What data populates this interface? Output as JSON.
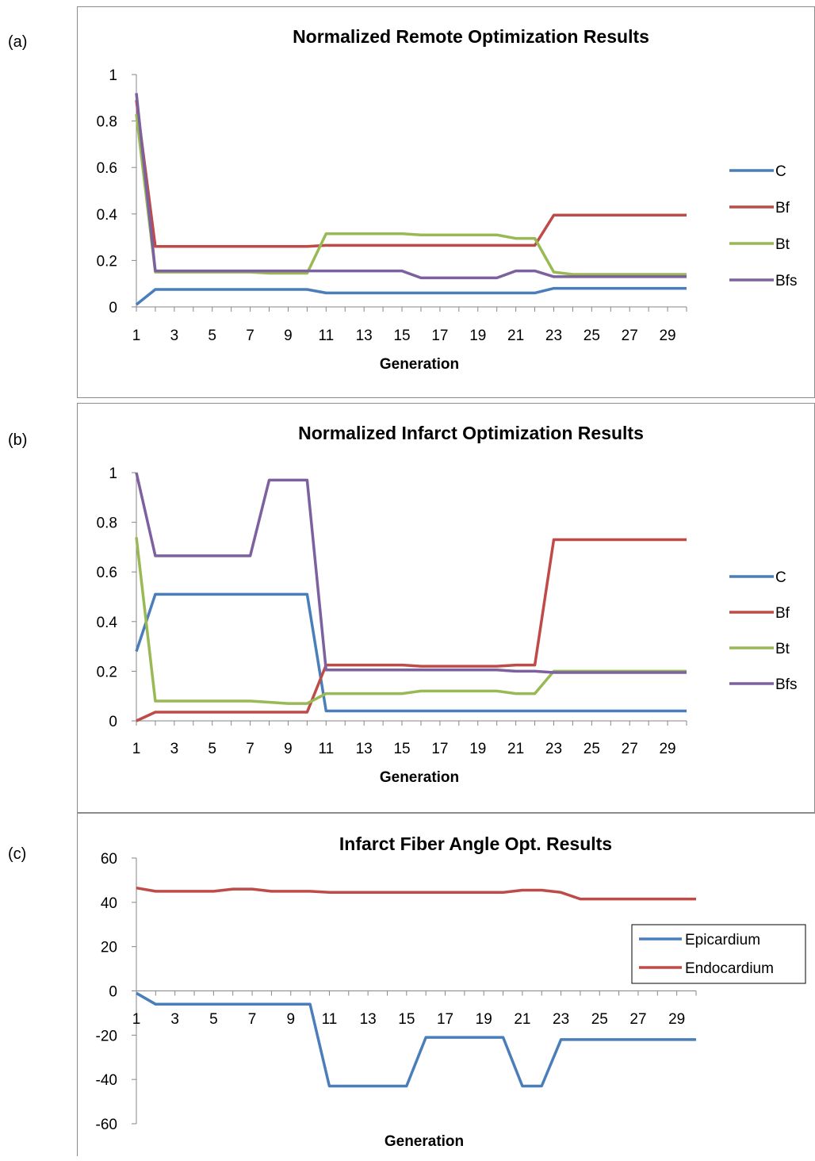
{
  "labels": {
    "a": "(a)",
    "b": "(b)",
    "c": "(c)"
  },
  "chart_data": [
    {
      "type": "line",
      "title": "Normalized Remote Optimization Results",
      "xlabel": "Generation",
      "ylabel": "",
      "ylim": [
        0,
        1
      ],
      "yticks": [
        0,
        0.2,
        0.4,
        0.6,
        0.8,
        1
      ],
      "ytick_labels": [
        "0",
        "0.2",
        "0.4",
        "0.6",
        "0.8",
        "1"
      ],
      "xticks": [
        1,
        3,
        5,
        7,
        9,
        11,
        13,
        15,
        17,
        19,
        21,
        23,
        25,
        27,
        29
      ],
      "x": [
        1,
        2,
        3,
        4,
        5,
        6,
        7,
        8,
        9,
        10,
        11,
        12,
        13,
        14,
        15,
        16,
        17,
        18,
        19,
        20,
        21,
        22,
        23,
        24,
        25,
        26,
        27,
        28,
        29,
        30
      ],
      "legend_position": "right",
      "grid": false,
      "series": [
        {
          "name": "C",
          "color": "#4a7ebb",
          "values": [
            0.01,
            0.075,
            0.075,
            0.075,
            0.075,
            0.075,
            0.075,
            0.075,
            0.075,
            0.075,
            0.06,
            0.06,
            0.06,
            0.06,
            0.06,
            0.06,
            0.06,
            0.06,
            0.06,
            0.06,
            0.06,
            0.06,
            0.08,
            0.08,
            0.08,
            0.08,
            0.08,
            0.08,
            0.08,
            0.08
          ]
        },
        {
          "name": "Bf",
          "color": "#be4b48",
          "values": [
            0.89,
            0.26,
            0.26,
            0.26,
            0.26,
            0.26,
            0.26,
            0.26,
            0.26,
            0.26,
            0.265,
            0.265,
            0.265,
            0.265,
            0.265,
            0.265,
            0.265,
            0.265,
            0.265,
            0.265,
            0.265,
            0.265,
            0.395,
            0.395,
            0.395,
            0.395,
            0.395,
            0.395,
            0.395,
            0.395
          ]
        },
        {
          "name": "Bt",
          "color": "#98b954",
          "values": [
            0.83,
            0.15,
            0.15,
            0.15,
            0.15,
            0.15,
            0.15,
            0.145,
            0.145,
            0.145,
            0.315,
            0.315,
            0.315,
            0.315,
            0.315,
            0.31,
            0.31,
            0.31,
            0.31,
            0.31,
            0.295,
            0.295,
            0.15,
            0.14,
            0.14,
            0.14,
            0.14,
            0.14,
            0.14,
            0.14
          ]
        },
        {
          "name": "Bfs",
          "color": "#7d60a0",
          "values": [
            0.92,
            0.155,
            0.155,
            0.155,
            0.155,
            0.155,
            0.155,
            0.155,
            0.155,
            0.155,
            0.155,
            0.155,
            0.155,
            0.155,
            0.155,
            0.125,
            0.125,
            0.125,
            0.125,
            0.125,
            0.155,
            0.155,
            0.13,
            0.13,
            0.13,
            0.13,
            0.13,
            0.13,
            0.13,
            0.13
          ]
        }
      ]
    },
    {
      "type": "line",
      "title": "Normalized Infarct Optimization Results",
      "xlabel": "Generation",
      "ylabel": "",
      "ylim": [
        0,
        1
      ],
      "yticks": [
        0,
        0.2,
        0.4,
        0.6,
        0.8,
        1
      ],
      "ytick_labels": [
        "0",
        "0.2",
        "0.4",
        "0.6",
        "0.8",
        "1"
      ],
      "xticks": [
        1,
        3,
        5,
        7,
        9,
        11,
        13,
        15,
        17,
        19,
        21,
        23,
        25,
        27,
        29
      ],
      "x": [
        1,
        2,
        3,
        4,
        5,
        6,
        7,
        8,
        9,
        10,
        11,
        12,
        13,
        14,
        15,
        16,
        17,
        18,
        19,
        20,
        21,
        22,
        23,
        24,
        25,
        26,
        27,
        28,
        29,
        30
      ],
      "legend_position": "right",
      "grid": false,
      "series": [
        {
          "name": "C",
          "color": "#4a7ebb",
          "values": [
            0.28,
            0.51,
            0.51,
            0.51,
            0.51,
            0.51,
            0.51,
            0.51,
            0.51,
            0.51,
            0.04,
            0.04,
            0.04,
            0.04,
            0.04,
            0.04,
            0.04,
            0.04,
            0.04,
            0.04,
            0.04,
            0.04,
            0.04,
            0.04,
            0.04,
            0.04,
            0.04,
            0.04,
            0.04,
            0.04
          ]
        },
        {
          "name": "Bf",
          "color": "#be4b48",
          "values": [
            0.0,
            0.035,
            0.035,
            0.035,
            0.035,
            0.035,
            0.035,
            0.035,
            0.035,
            0.035,
            0.225,
            0.225,
            0.225,
            0.225,
            0.225,
            0.22,
            0.22,
            0.22,
            0.22,
            0.22,
            0.225,
            0.225,
            0.73,
            0.73,
            0.73,
            0.73,
            0.73,
            0.73,
            0.73,
            0.73
          ]
        },
        {
          "name": "Bt",
          "color": "#98b954",
          "values": [
            0.74,
            0.08,
            0.08,
            0.08,
            0.08,
            0.08,
            0.08,
            0.075,
            0.07,
            0.07,
            0.11,
            0.11,
            0.11,
            0.11,
            0.11,
            0.12,
            0.12,
            0.12,
            0.12,
            0.12,
            0.11,
            0.11,
            0.2,
            0.2,
            0.2,
            0.2,
            0.2,
            0.2,
            0.2,
            0.2
          ]
        },
        {
          "name": "Bfs",
          "color": "#7d60a0",
          "values": [
            1.0,
            0.665,
            0.665,
            0.665,
            0.665,
            0.665,
            0.665,
            0.97,
            0.97,
            0.97,
            0.205,
            0.205,
            0.205,
            0.205,
            0.205,
            0.205,
            0.205,
            0.205,
            0.205,
            0.205,
            0.2,
            0.2,
            0.195,
            0.195,
            0.195,
            0.195,
            0.195,
            0.195,
            0.195,
            0.195
          ]
        }
      ]
    },
    {
      "type": "line",
      "title": "Infarct Fiber Angle Opt. Results",
      "xlabel": "Generation",
      "ylabel": "",
      "ylim": [
        -60,
        60
      ],
      "yticks": [
        -60,
        -40,
        -20,
        0,
        20,
        40,
        60
      ],
      "ytick_labels": [
        "-60",
        "-40",
        "-20",
        "0",
        "20",
        "40",
        "60"
      ],
      "xticks": [
        1,
        3,
        5,
        7,
        9,
        11,
        13,
        15,
        17,
        19,
        21,
        23,
        25,
        27,
        29
      ],
      "x": [
        1,
        2,
        3,
        4,
        5,
        6,
        7,
        8,
        9,
        10,
        11,
        12,
        13,
        14,
        15,
        16,
        17,
        18,
        19,
        20,
        21,
        22,
        23,
        24,
        25,
        26,
        27,
        28,
        29,
        30
      ],
      "legend_position": "right",
      "grid": false,
      "series": [
        {
          "name": "Epicardium",
          "color": "#4a7ebb",
          "values": [
            -1,
            -6,
            -6,
            -6,
            -6,
            -6,
            -6,
            -6,
            -6,
            -6,
            -43,
            -43,
            -43,
            -43,
            -43,
            -21,
            -21,
            -21,
            -21,
            -21,
            -43,
            -43,
            -22,
            -22,
            -22,
            -22,
            -22,
            -22,
            -22,
            -22
          ]
        },
        {
          "name": "Endocardium",
          "color": "#be4b48",
          "values": [
            46.5,
            45,
            45,
            45,
            45,
            46,
            46,
            45,
            45,
            45,
            44.5,
            44.5,
            44.5,
            44.5,
            44.5,
            44.5,
            44.5,
            44.5,
            44.5,
            44.5,
            45.5,
            45.5,
            44.5,
            41.5,
            41.5,
            41.5,
            41.5,
            41.5,
            41.5,
            41.5
          ]
        }
      ]
    }
  ]
}
